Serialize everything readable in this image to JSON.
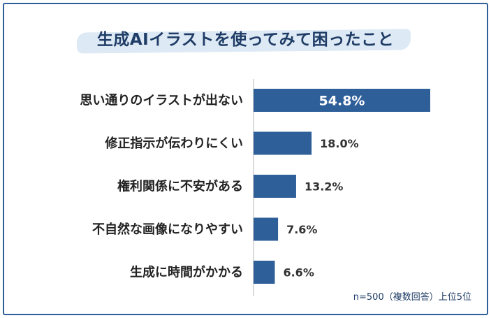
{
  "title": "生成AIイラストを使ってみて困ったこと",
  "note": "n=500（複数回答）上位5位",
  "colors": {
    "bar": "#2f5f99",
    "frame": "#2f5f99",
    "title_highlight": "#dde9f4"
  },
  "chart_data": {
    "type": "bar",
    "orientation": "horizontal",
    "title": "生成AIイラストを使ってみて困ったこと",
    "categories": [
      "思い通りのイラストが出ない",
      "修正指示が伝わりにくい",
      "権利関係に不安がある",
      "不自然な画像になりやすい",
      "生成に時間がかかる"
    ],
    "values": [
      54.8,
      18.0,
      13.2,
      7.6,
      6.6
    ],
    "labels": [
      "54.8%",
      "18.0%",
      "13.2%",
      "7.6%",
      "6.6%"
    ],
    "unit": "%",
    "xlim": [
      0,
      100
    ],
    "grid": false,
    "legend": "none"
  }
}
